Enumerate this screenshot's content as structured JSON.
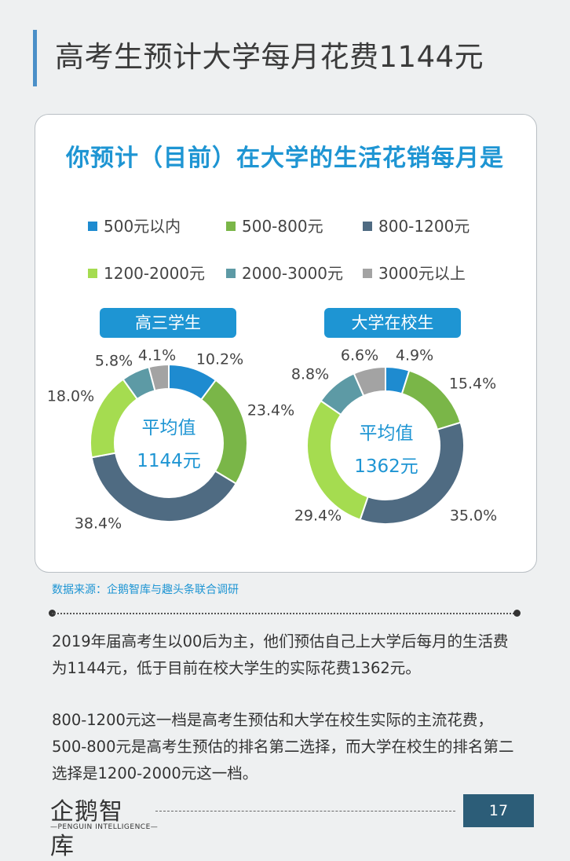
{
  "page_title": "高考生预计大学每月花费1144元",
  "chart_data": {
    "type": "pie",
    "title": "你预计（目前）在大学的生活花销每月是",
    "legend_placement": "top",
    "legend": [
      {
        "label": "500元以内",
        "color": "#1e8bd0"
      },
      {
        "label": "500-800元",
        "color": "#7ab648"
      },
      {
        "label": "800-1200元",
        "color": "#4f6b82"
      },
      {
        "label": "1200-2000元",
        "color": "#a5dc50"
      },
      {
        "label": "2000-3000元",
        "color": "#5d9aa5"
      },
      {
        "label": "3000元以上",
        "color": "#a3a3a3"
      }
    ],
    "series": [
      {
        "name": "高三学生",
        "values": [
          10.2,
          23.4,
          38.4,
          18.0,
          5.8,
          4.1
        ],
        "labels": [
          "10.2%",
          "23.4%",
          "38.4%",
          "18.0%",
          "5.8%",
          "4.1%"
        ],
        "center_label": "平均值",
        "center_value": "1144元"
      },
      {
        "name": "大学在校生",
        "values": [
          4.9,
          15.4,
          35.0,
          29.4,
          8.8,
          6.6
        ],
        "labels": [
          "4.9%",
          "15.4%",
          "35.0%",
          "29.4%",
          "8.8%",
          "6.6%"
        ],
        "center_label": "平均值",
        "center_value": "1362元"
      }
    ]
  },
  "source": "数据来源：企鹅智库与趣头条联合调研",
  "paragraphs": [
    "2019年届高考生以00后为主，他们预估自己上大学后每月的生活费为1144元，低于目前在校大学生的实际花费1362元。",
    "800-1200元这一档是高考生预估和大学在校生实际的主流花费，500-800元是高考生预估的排名第二选择，而大学在校生的排名第二选择是1200-2000元这一档。"
  ],
  "logo": {
    "main": "企鹅智库",
    "sub": "—PENGUIN INTELLIGENCE—"
  },
  "page_number": "17"
}
